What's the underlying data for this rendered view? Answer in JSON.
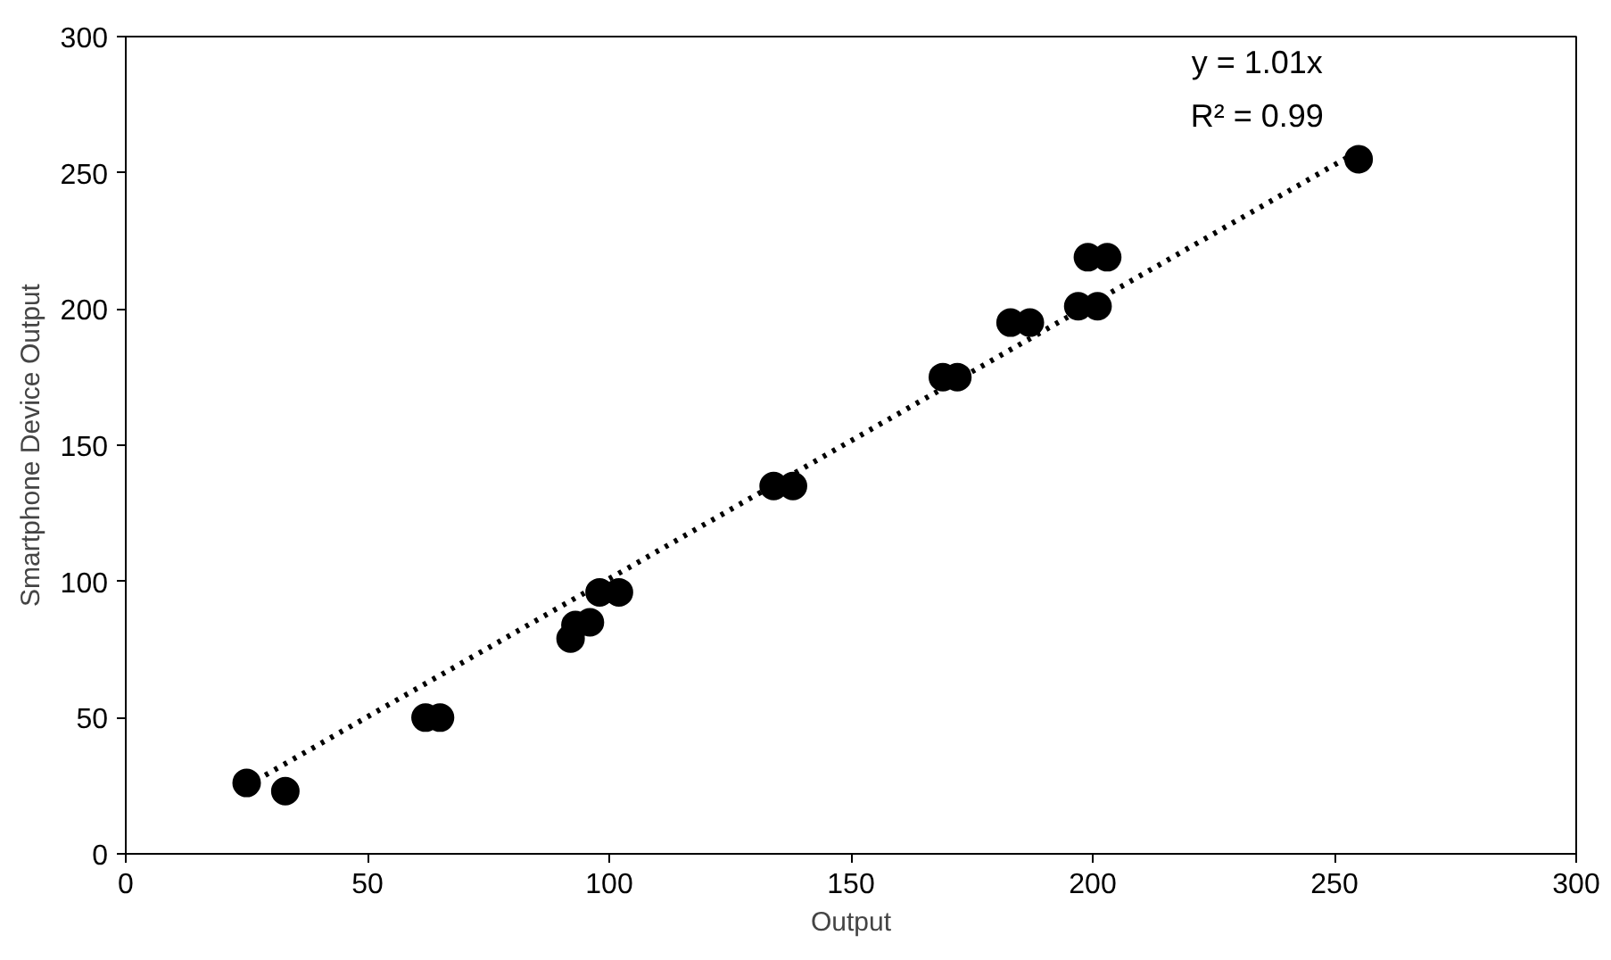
{
  "chart_data": {
    "type": "scatter",
    "xlabel": "Output",
    "ylabel": "Smartphone Device Output",
    "xlim": [
      0,
      300
    ],
    "ylim": [
      0,
      300
    ],
    "xticks": [
      0,
      50,
      100,
      150,
      200,
      250,
      300
    ],
    "yticks": [
      0,
      50,
      100,
      150,
      200,
      250,
      300
    ],
    "grid": false,
    "series": [
      {
        "marker": "circle",
        "color": "#000000",
        "x": [
          25,
          33,
          62,
          65,
          92,
          93,
          96,
          98,
          102,
          134,
          138,
          169,
          172,
          183,
          187,
          197,
          201,
          199,
          203,
          255
        ],
        "values": [
          26,
          23,
          50,
          50,
          79,
          84,
          85,
          96,
          96,
          135,
          135,
          175,
          175,
          195,
          195,
          201,
          201,
          219,
          219,
          255
        ]
      },
      {
        "type": "line",
        "color": "#000000",
        "line_style": "dotted",
        "x": [
          25,
          255
        ],
        "values": [
          25,
          258
        ]
      }
    ],
    "annotations": [
      "y = 1.01x",
      "R² = 0.99"
    ]
  }
}
